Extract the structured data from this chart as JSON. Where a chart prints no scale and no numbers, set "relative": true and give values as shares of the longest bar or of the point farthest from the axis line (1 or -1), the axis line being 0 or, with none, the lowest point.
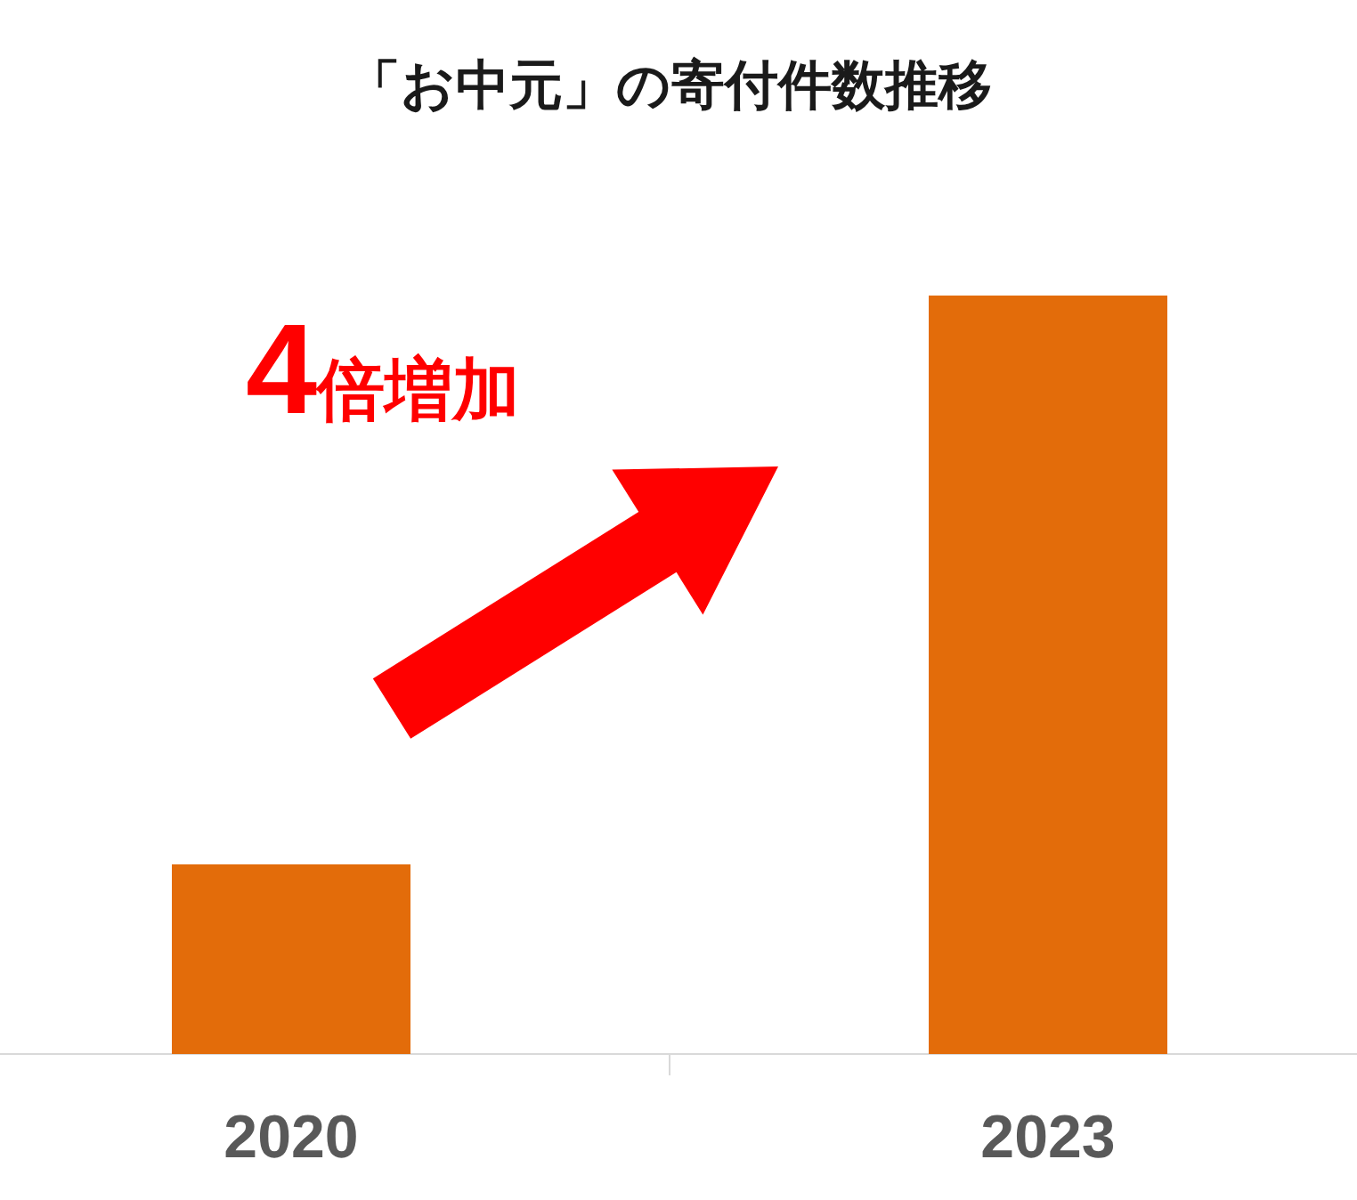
{
  "chart_data": {
    "type": "bar",
    "title": "「お中元」の寄付件数推移",
    "categories": [
      "2020",
      "2023"
    ],
    "values": [
      0.25,
      1
    ],
    "color": "#e36c0a",
    "relative": true,
    "annotations": [
      "4倍増加"
    ]
  }
}
